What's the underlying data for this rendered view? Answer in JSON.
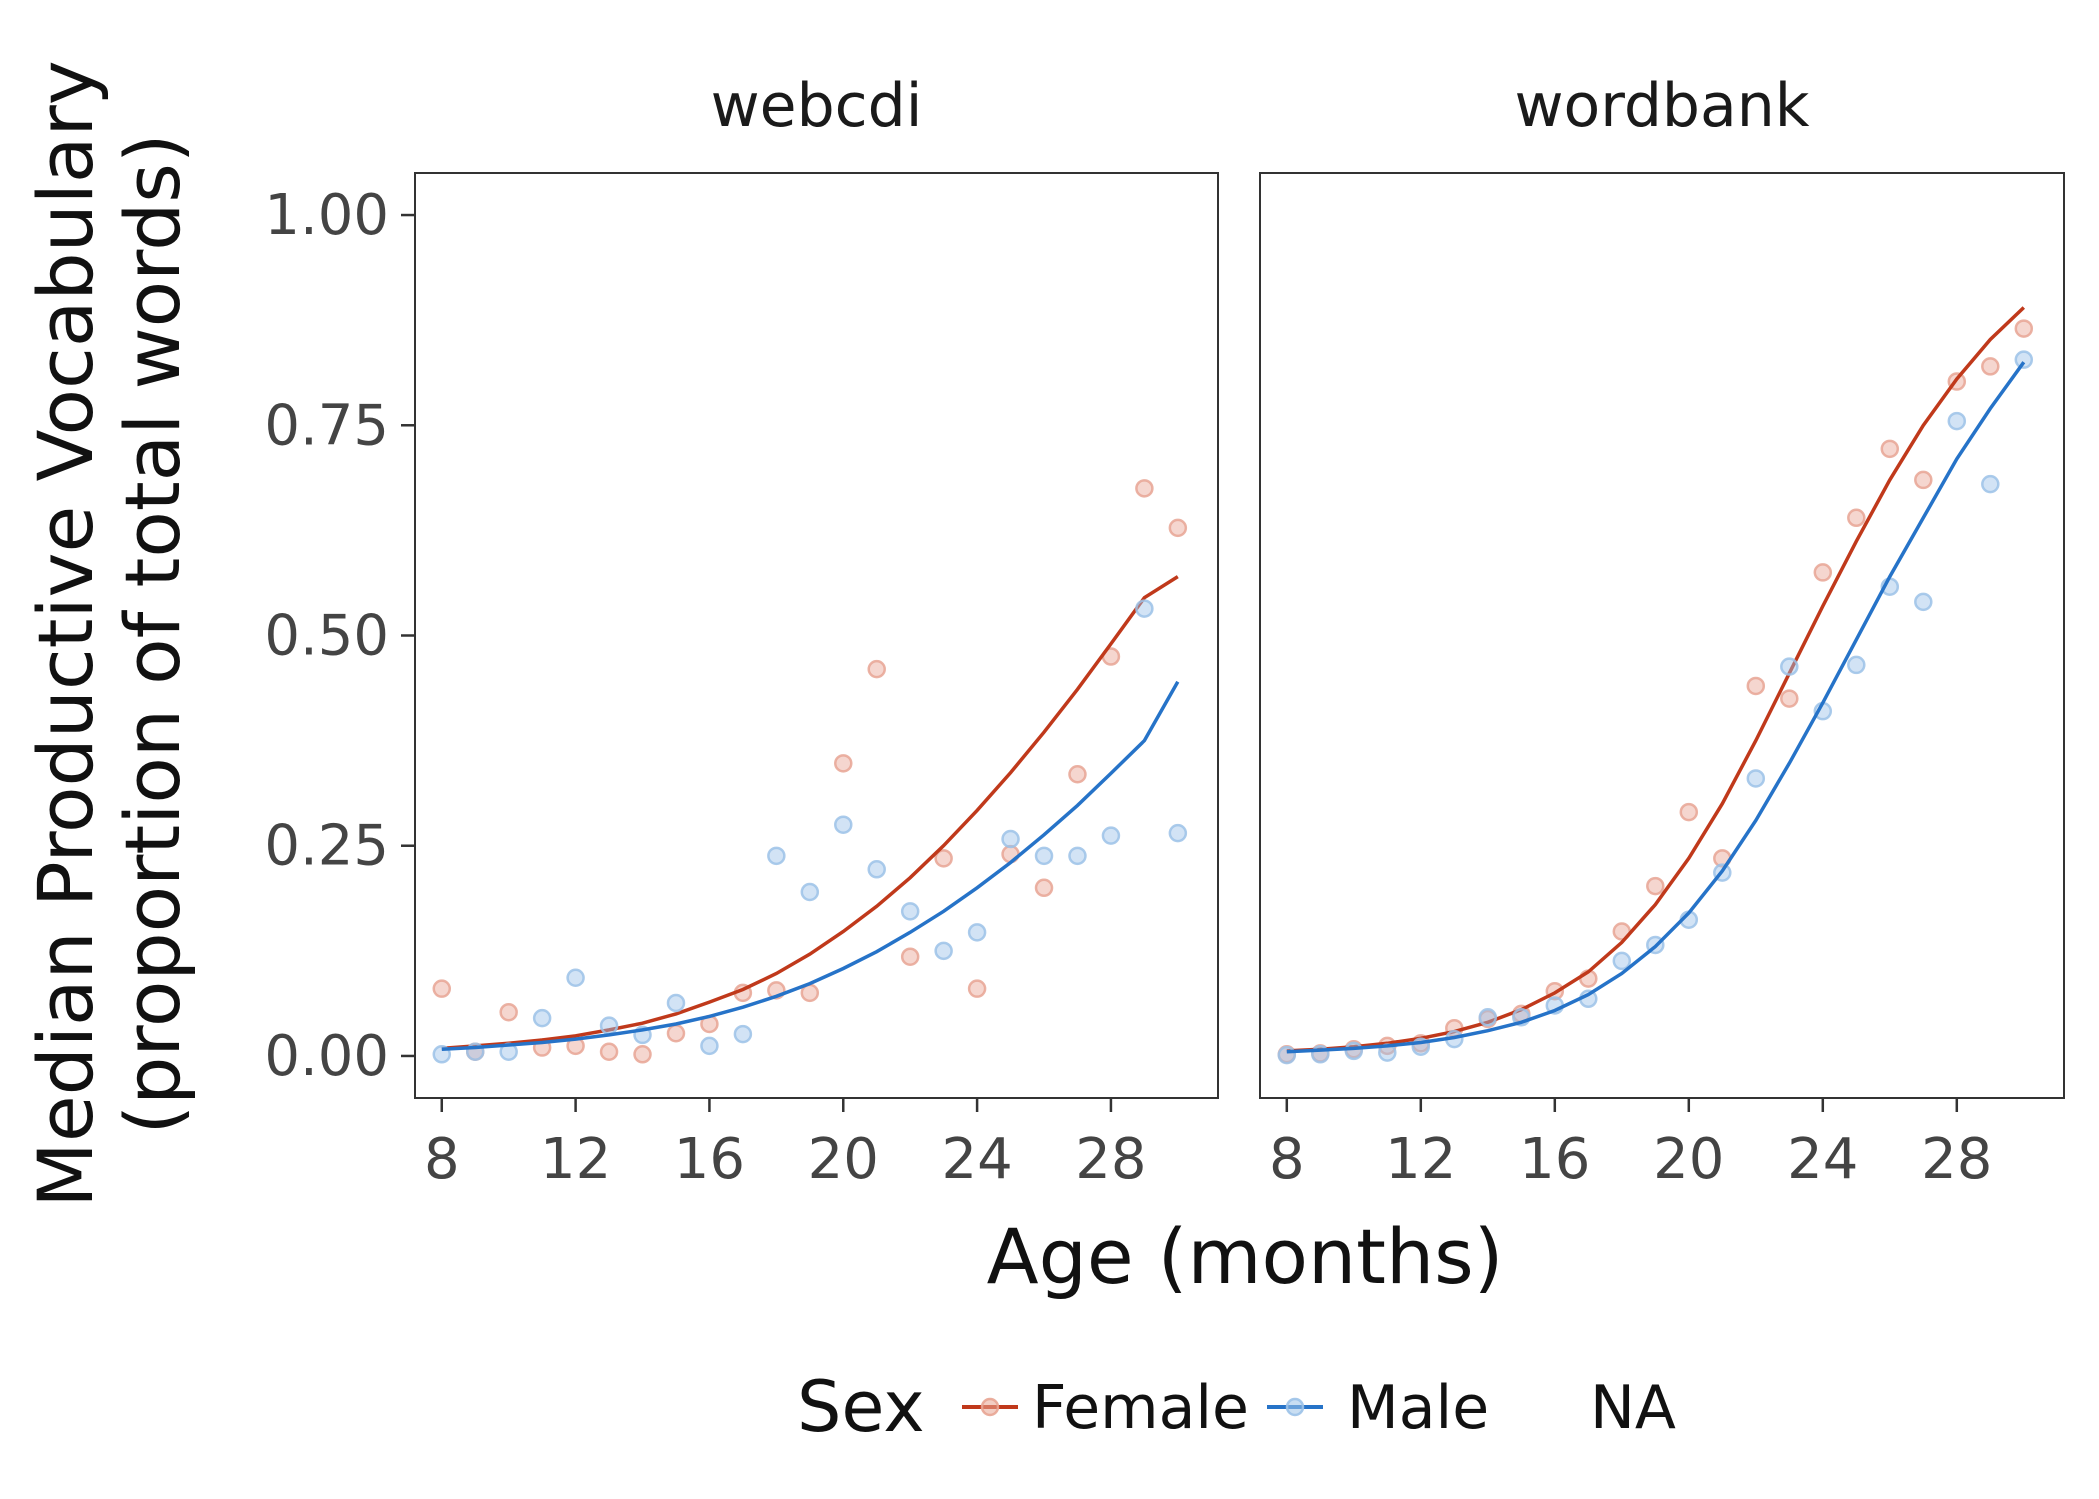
{
  "chart_data": {
    "type": "scatter",
    "xlabel": "Age (months)",
    "ylabel": [
      "Median Productive Vocabulary",
      "(proportion of total words)"
    ],
    "xlim": [
      7.2,
      31.2
    ],
    "ylim": [
      -0.05,
      1.05
    ],
    "x_ticks": [
      8,
      12,
      16,
      20,
      24,
      28
    ],
    "x_tick_labels": [
      "8",
      "12",
      "16",
      "20",
      "24",
      "28"
    ],
    "y_ticks": [
      0,
      0.25,
      0.5,
      0.75,
      1
    ],
    "y_tick_labels": [
      "0.00",
      "0.25",
      "0.50",
      "0.75",
      "1.00"
    ],
    "grid": false,
    "legend": {
      "title": "Sex",
      "position": "bottom",
      "entries": [
        {
          "label": "Female",
          "color": "#c0391b"
        },
        {
          "label": "Male",
          "color": "#2673c8"
        },
        {
          "label": "NA",
          "color": null
        }
      ]
    },
    "panels": [
      {
        "title": "webcdi",
        "series": [
          {
            "name": "Female",
            "color": "#c0391b",
            "point_color": "#e8a594",
            "x": [
              8,
              9,
              10,
              11,
              12,
              13,
              14,
              15,
              16,
              17,
              18,
              19,
              20,
              21,
              22,
              23,
              24,
              25,
              26,
              27,
              28,
              29,
              30
            ],
            "y": [
              0.08,
              0.005,
              0.052,
              0.01,
              0.012,
              0.005,
              0.002,
              0.027,
              0.038,
              0.075,
              0.078,
              0.075,
              0.348,
              0.46,
              0.118,
              0.235,
              0.08,
              0.24,
              0.2,
              0.335,
              0.475,
              0.675,
              0.628
            ],
            "fit": [
              0.009,
              0.012,
              0.015,
              0.019,
              0.024,
              0.031,
              0.039,
              0.05,
              0.064,
              0.079,
              0.098,
              0.121,
              0.148,
              0.178,
              0.212,
              0.25,
              0.292,
              0.337,
              0.385,
              0.436,
              0.49,
              0.545,
              0.57
            ]
          },
          {
            "name": "Male",
            "color": "#2673c8",
            "point_color": "#9cc2e8",
            "x": [
              8,
              9,
              10,
              11,
              12,
              13,
              14,
              15,
              16,
              17,
              18,
              19,
              20,
              21,
              22,
              23,
              24,
              25,
              26,
              27,
              28,
              29,
              30
            ],
            "y": [
              0.002,
              0.005,
              0.005,
              0.045,
              0.093,
              0.036,
              0.025,
              0.063,
              0.012,
              0.026,
              0.238,
              0.195,
              0.275,
              0.222,
              0.172,
              0.125,
              0.147,
              0.258,
              0.238,
              0.238,
              0.262,
              0.532,
              0.265
            ],
            "fit": [
              0.008,
              0.01,
              0.013,
              0.016,
              0.02,
              0.025,
              0.031,
              0.038,
              0.047,
              0.058,
              0.071,
              0.086,
              0.104,
              0.124,
              0.147,
              0.172,
              0.2,
              0.23,
              0.263,
              0.298,
              0.336,
              0.375,
              0.445
            ]
          }
        ]
      },
      {
        "title": "wordbank",
        "series": [
          {
            "name": "Female",
            "color": "#c0391b",
            "point_color": "#e8a594",
            "x": [
              8,
              9,
              10,
              11,
              12,
              13,
              14,
              15,
              16,
              17,
              18,
              19,
              20,
              21,
              22,
              23,
              24,
              25,
              26,
              27,
              28,
              29,
              30
            ],
            "y": [
              0.002,
              0.003,
              0.008,
              0.012,
              0.015,
              0.033,
              0.044,
              0.05,
              0.077,
              0.092,
              0.148,
              0.202,
              0.29,
              0.235,
              0.44,
              0.425,
              0.575,
              0.64,
              0.722,
              0.685,
              0.802,
              0.82,
              0.865
            ],
            "fit": [
              0.006,
              0.008,
              0.011,
              0.015,
              0.021,
              0.029,
              0.04,
              0.055,
              0.075,
              0.1,
              0.135,
              0.18,
              0.235,
              0.3,
              0.375,
              0.455,
              0.535,
              0.612,
              0.685,
              0.75,
              0.805,
              0.852,
              0.89
            ]
          },
          {
            "name": "Male",
            "color": "#2673c8",
            "point_color": "#9cc2e8",
            "x": [
              8,
              9,
              10,
              11,
              12,
              13,
              14,
              15,
              16,
              17,
              18,
              19,
              20,
              21,
              22,
              23,
              24,
              25,
              26,
              27,
              28,
              29,
              30
            ],
            "y": [
              0.001,
              0.002,
              0.006,
              0.004,
              0.011,
              0.02,
              0.046,
              0.046,
              0.06,
              0.068,
              0.113,
              0.132,
              0.162,
              0.218,
              0.33,
              0.463,
              0.41,
              0.465,
              0.558,
              0.54,
              0.755,
              0.68,
              0.828
            ],
            "fit": [
              0.005,
              0.007,
              0.009,
              0.012,
              0.016,
              0.022,
              0.03,
              0.04,
              0.054,
              0.073,
              0.098,
              0.13,
              0.17,
              0.22,
              0.28,
              0.348,
              0.42,
              0.495,
              0.57,
              0.64,
              0.71,
              0.77,
              0.825
            ]
          }
        ]
      }
    ]
  }
}
